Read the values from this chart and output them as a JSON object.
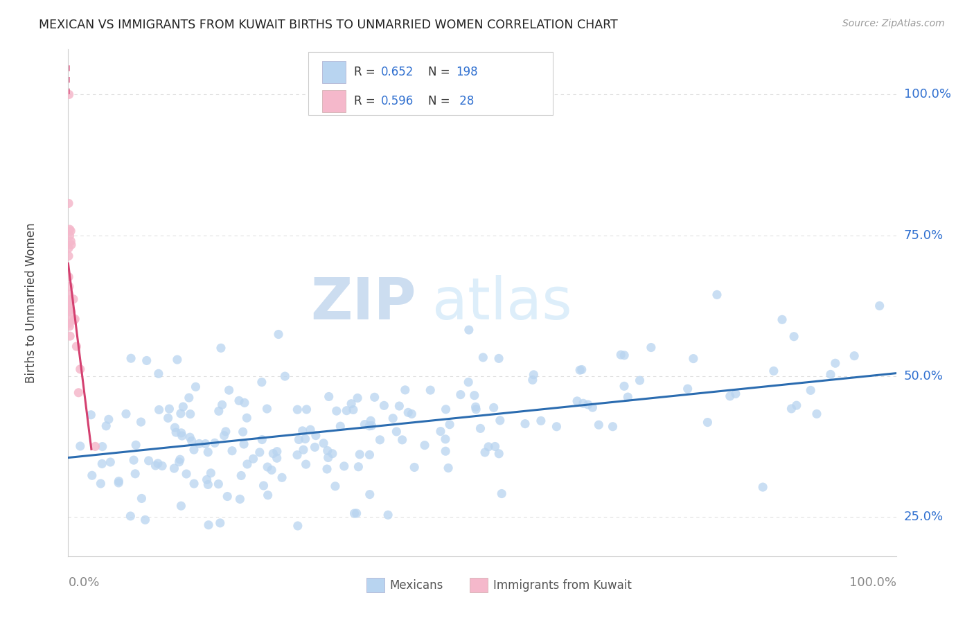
{
  "title": "MEXICAN VS IMMIGRANTS FROM KUWAIT BIRTHS TO UNMARRIED WOMEN CORRELATION CHART",
  "source": "Source: ZipAtlas.com",
  "ylabel": "Births to Unmarried Women",
  "series": [
    {
      "label": "Mexicans",
      "R": 0.652,
      "N": 198,
      "color": "#b8d4f0",
      "line_color": "#2b6cb0",
      "trend_x0": 0.0,
      "trend_y0": 0.355,
      "trend_x1": 1.0,
      "trend_y1": 0.505
    },
    {
      "label": "Immigrants from Kuwait",
      "R": 0.596,
      "N": 28,
      "color": "#f5b8cb",
      "line_color": "#d44070",
      "trend_x0": 0.0,
      "trend_y0": 0.7,
      "trend_x1": 0.028,
      "trend_y1": 0.37
    }
  ],
  "background_color": "#ffffff",
  "legend_box_color_1": "#b8d4f0",
  "legend_box_color_2": "#f5b8cb",
  "accent_blue": "#3070d0",
  "grid_color": "#e0e0e0",
  "ytick_values": [
    0.25,
    0.5,
    0.75,
    1.0
  ],
  "ytick_labels": [
    "25.0%",
    "50.0%",
    "75.0%",
    "100.0%"
  ],
  "xlim": [
    0,
    1.0
  ],
  "ylim": [
    0.18,
    1.08
  ],
  "watermark_zip_color": "#c8ddf0",
  "watermark_atlas_color": "#d8eaf8"
}
